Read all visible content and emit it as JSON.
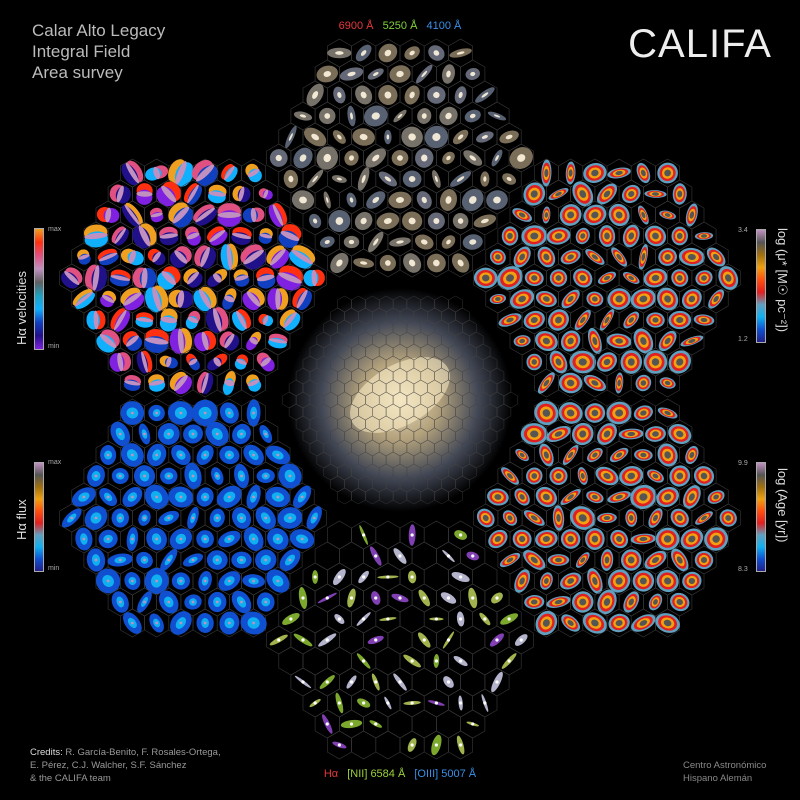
{
  "title_lines": [
    "Calar Alto Legacy",
    "Integral Field",
    "Area survey"
  ],
  "logo": "CALIFA",
  "top_wavelengths": [
    {
      "label": "6900 Å",
      "color": "#e8383a"
    },
    {
      "label": "5250 Å",
      "color": "#7fd23a"
    },
    {
      "label": "4100 Å",
      "color": "#3a8fe8"
    }
  ],
  "bottom_lines": [
    {
      "label": "Hα",
      "color": "#e8383a"
    },
    {
      "label": "[NII] 6584 Å",
      "color": "#9cd23a"
    },
    {
      "label": "[OIII] 5007 Å",
      "color": "#3a8fe8"
    }
  ],
  "credits": {
    "heading": "Credits:",
    "lines": [
      "R. García-Benito, F. Rosales-Ortega,",
      "E. Pérez, C.J. Walcher, S.F. Sánchez",
      "& the CALIFA team"
    ]
  },
  "institute": [
    "Centro Astronómico",
    "Hispano Alemán"
  ],
  "colorbars": {
    "velocity": {
      "label": "Hα velocities",
      "max": "max",
      "min": "min",
      "colormap": [
        "#f0a020",
        "#ff3010",
        "#e05080",
        "#c090c0",
        "#606060",
        "#20a0c0",
        "#10b0ff",
        "#1040c0",
        "#20108a",
        "#8020e0"
      ]
    },
    "flux": {
      "label": "Hα flux",
      "max": "max",
      "min": "min",
      "colormap": [
        "#c090c0",
        "#555555",
        "#a07010",
        "#f0a010",
        "#ff5010",
        "#e02020",
        "#60a0c0",
        "#10b0f0",
        "#1050d0",
        "#20208a"
      ]
    },
    "mass": {
      "label": "log (μ* [M☉ pc⁻²])",
      "max": "3.4",
      "min": "1.2",
      "colormap": [
        "#c090c0",
        "#555555",
        "#a07010",
        "#f0a010",
        "#ff5010",
        "#e02020",
        "#60a0c0",
        "#10b0f0",
        "#1050d0",
        "#20208a"
      ]
    },
    "age": {
      "label": "log (Age [yr])",
      "max": "9.9",
      "min": "8.3",
      "colormap": [
        "#c090c0",
        "#555555",
        "#a07010",
        "#f0a010",
        "#ff5010",
        "#e02020",
        "#60a0c0",
        "#10b0f0",
        "#1050d0",
        "#20208a"
      ]
    }
  }
}
